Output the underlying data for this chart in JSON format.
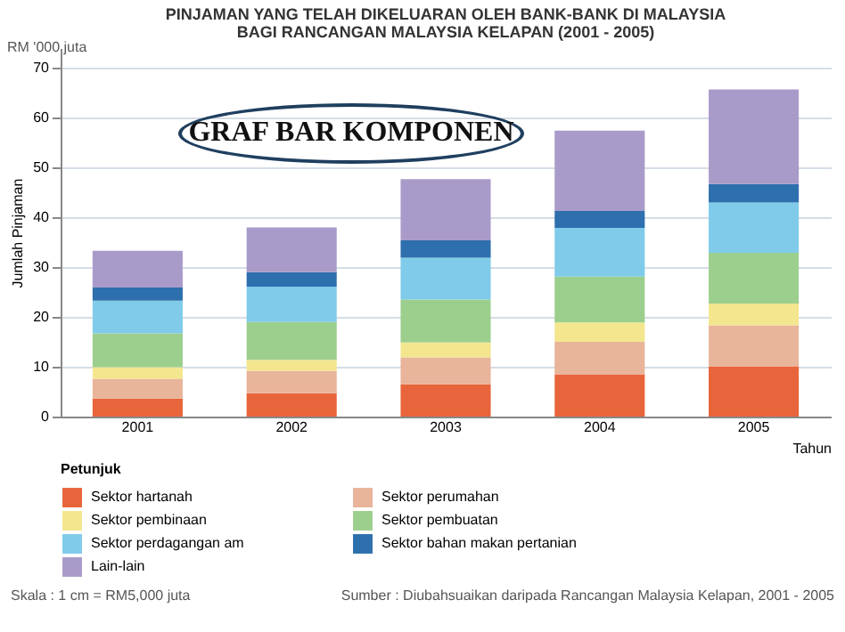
{
  "chart_data": {
    "type": "bar",
    "title": "PINJAMAN YANG TELAH DIKELUARAN OLEH BANK-BANK DI MALAYSIA",
    "subtitle": "BAGI RANCANGAN MALAYSIA KELAPAN (2001 - 2005)",
    "xlabel": "Tahun",
    "ylabel": "Jumlah Pinjaman",
    "legend_title": "Petunjuk",
    "annotations": [
      "GRAF BAR KOMPONEN",
      "RM '000 juta",
      "Skala : 1 cm = RM5,000 juta",
      "Sumber : Diubahsuaikan daripada Rancangan Malaysia Kelapan, 2001 - 2005"
    ],
    "categories": [
      "2001",
      "2002",
      "2003",
      "2004",
      "2005"
    ],
    "stacked": true,
    "series": [
      {
        "name": "Sektor hartanah",
        "color": "#e8643a",
        "values": [
          3.6,
          4.7,
          6.5,
          8.5,
          10.1
        ]
      },
      {
        "name": "Sektor perumahan",
        "color": "#e8b49a",
        "values": [
          4.0,
          4.5,
          5.4,
          6.5,
          8.2
        ]
      },
      {
        "name": "Sektor pembinaan",
        "color": "#f3e68e",
        "values": [
          2.3,
          2.2,
          3.0,
          3.9,
          4.4
        ]
      },
      {
        "name": "Sektor pembuatan",
        "color": "#9ccf8e",
        "values": [
          6.8,
          7.6,
          8.6,
          9.2,
          10.2
        ]
      },
      {
        "name": "Sektor perdagangan am",
        "color": "#7fcbe9",
        "values": [
          6.6,
          7.1,
          8.4,
          9.8,
          10.1
        ]
      },
      {
        "name": "Sektor bahan makan pertanian",
        "color": "#2e6fad",
        "values": [
          2.6,
          2.9,
          3.5,
          3.4,
          3.7
        ]
      },
      {
        "name": "Lain-lain",
        "color": "#a99bc9",
        "values": [
          7.4,
          9.0,
          12.3,
          16.1,
          19.0
        ]
      }
    ],
    "ylim": [
      0,
      74
    ],
    "yticks": [
      0,
      10,
      20,
      30,
      40,
      50,
      60,
      70
    ],
    "grid": "y",
    "legend": "bottom"
  }
}
